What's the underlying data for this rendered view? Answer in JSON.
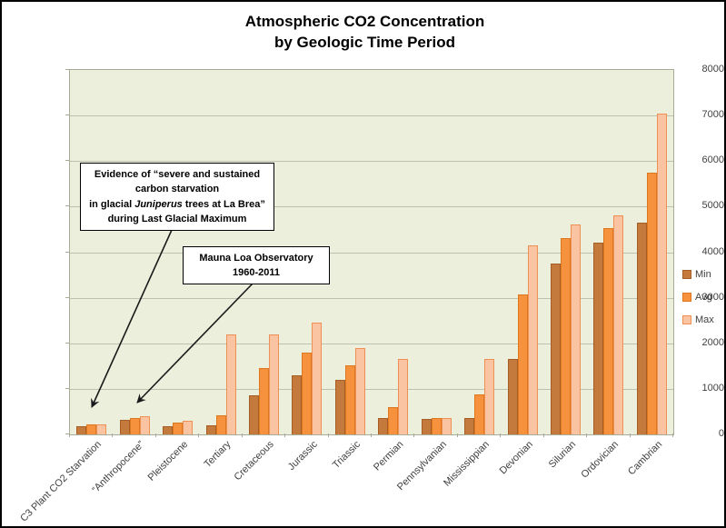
{
  "header": {
    "title_line1": "Atmospheric CO2 Concentration",
    "title_line2": "by Geologic Time Period"
  },
  "chart_data": {
    "type": "bar",
    "title": "Atmospheric CO2 Concentration by Geologic Time Period",
    "categories": [
      "C3 Plant CO2 Starvation",
      "“Anthropocene”",
      "Pleistocene",
      "Tertiary",
      "Cretaceous",
      "Jurassic",
      "Triassic",
      "Permian",
      "Pennsylvanian",
      "Mississippian",
      "Devonian",
      "Silurian",
      "Ordovician",
      "Cambrian"
    ],
    "series": [
      {
        "name": "Min",
        "color": "#C57A3D",
        "border": "#A55E26",
        "values": [
          180,
          315,
          180,
          200,
          850,
          1300,
          1200,
          350,
          340,
          350,
          1650,
          3750,
          4200,
          4650
        ]
      },
      {
        "name": "Avg",
        "color": "#F6913E",
        "border": "#DD781F",
        "values": [
          215,
          355,
          250,
          420,
          1450,
          1800,
          1520,
          600,
          350,
          880,
          3080,
          4300,
          4520,
          5750
        ]
      },
      {
        "name": "Max",
        "color": "#FAC4A2",
        "border": "#EE8F53",
        "values": [
          225,
          390,
          300,
          2200,
          2200,
          2450,
          1900,
          1650,
          365,
          1650,
          4150,
          4600,
          4800,
          7050
        ]
      }
    ],
    "ylim": [
      0,
      8000
    ],
    "yticks": [
      0,
      1000,
      2000,
      3000,
      4000,
      5000,
      6000,
      7000,
      8000
    ],
    "grid": true,
    "legend_position": "right",
    "plot_bg": "#EBEFDC",
    "grid_color": "#BCC2B0",
    "axis_color": "#A6AC97"
  },
  "annotations": {
    "la_brea": {
      "line1": "Evidence of “severe and sustained",
      "line2": "carbon starvation",
      "line3_pre": "in glacial ",
      "line3_italic": "Juniperus",
      "line3_post": " trees at La Brea”",
      "line4": "during Last Glacial Maximum"
    },
    "mauna_loa": {
      "line1": "Mauna Loa Observatory",
      "line2": "1960-2011"
    }
  }
}
